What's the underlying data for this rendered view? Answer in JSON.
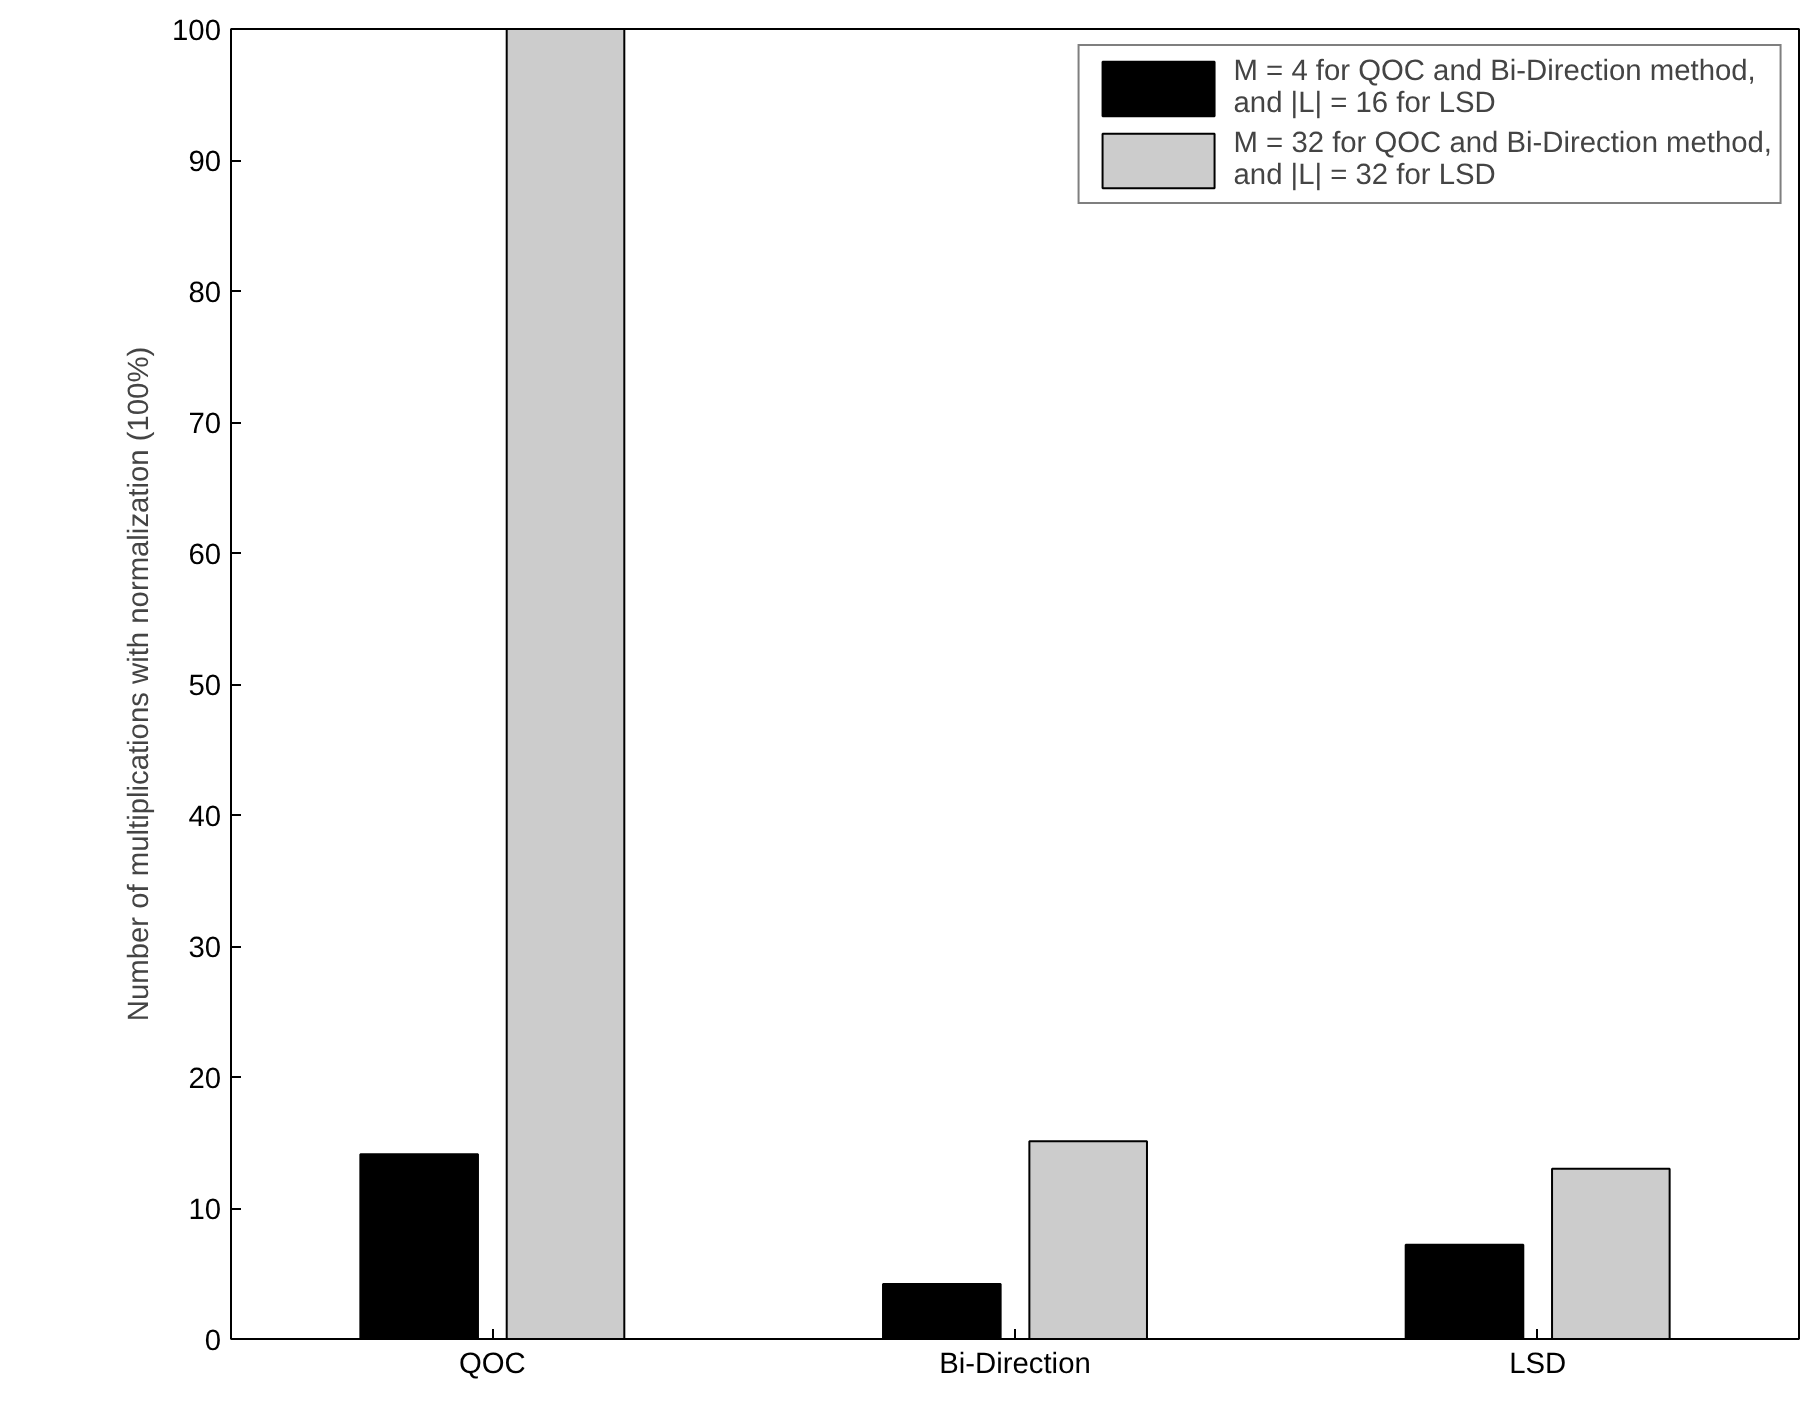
{
  "chart_data": {
    "type": "bar",
    "ylabel": "Number of multiplications with normalization (100%)",
    "categories": [
      "QOC",
      "Bi-Direction",
      "LSD"
    ],
    "series": [
      {
        "name": "M = 4 for QOC and Bi-Direction method,\nand |L| = 16 for LSD",
        "color": "#000000",
        "values": [
          14.1,
          4.2,
          7.2
        ]
      },
      {
        "name": "M = 32 for QOC and Bi-Direction method,\nand |L| = 32 for LSD",
        "color": "#cccccc",
        "values": [
          100,
          15.1,
          13.0
        ]
      }
    ],
    "ylim": [
      0,
      100
    ],
    "yticks": [
      0,
      10,
      20,
      30,
      40,
      50,
      60,
      70,
      80,
      90,
      100
    ],
    "grid": false,
    "legend": "top right"
  }
}
